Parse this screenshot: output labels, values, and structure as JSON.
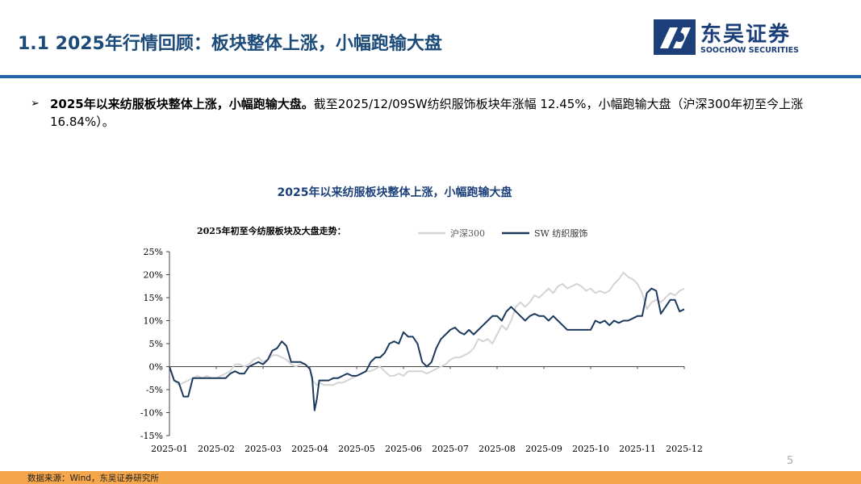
{
  "header": {
    "title": "1.1 2025年行情回顾：板块整体上涨，小幅跑输大盘",
    "logo_cn": "东吴证券",
    "logo_en": "SOOCHOW SECURITIES"
  },
  "body": {
    "bullet_bold": "2025年以来纺服板块整体上涨，小幅跑输大盘。",
    "bullet_rest": "截至2025/12/09SW纺织服饰板块年涨幅 12.45%，小幅跑输大盘（沪深300年初至今上涨16.84%）。",
    "chart_heading": "2025年以来纺服板块整体上涨，小幅跑输大盘"
  },
  "chart_data": {
    "type": "line",
    "title": "2025年初至今纺服板块及大盘走势：",
    "xlabel": "",
    "ylabel": "",
    "ylim": [
      -15,
      25
    ],
    "yticks": [
      "25%",
      "20%",
      "15%",
      "10%",
      "5%",
      "0%",
      "-5%",
      "-10%",
      "-15%"
    ],
    "x_tick_labels": [
      "2025-01",
      "2025-02",
      "2025-03",
      "2025-04",
      "2025-05",
      "2025-06",
      "2025-07",
      "2025-08",
      "2025-09",
      "2025-10",
      "2025-11",
      "2025-12"
    ],
    "x": [
      0,
      0.1,
      0.2,
      0.3,
      0.4,
      0.5,
      0.6,
      0.7,
      0.8,
      0.9,
      1.0,
      1.1,
      1.2,
      1.3,
      1.4,
      1.5,
      1.6,
      1.7,
      1.8,
      1.9,
      2.0,
      2.1,
      2.2,
      2.3,
      2.4,
      2.5,
      2.6,
      2.7,
      2.8,
      2.9,
      3.0,
      3.05,
      3.1,
      3.15,
      3.2,
      3.3,
      3.4,
      3.5,
      3.6,
      3.7,
      3.8,
      3.9,
      4.0,
      4.1,
      4.2,
      4.3,
      4.4,
      4.5,
      4.6,
      4.7,
      4.8,
      4.9,
      5.0,
      5.1,
      5.2,
      5.3,
      5.4,
      5.5,
      5.6,
      5.7,
      5.8,
      5.9,
      6.0,
      6.1,
      6.2,
      6.3,
      6.4,
      6.5,
      6.6,
      6.7,
      6.8,
      6.9,
      7.0,
      7.1,
      7.2,
      7.3,
      7.4,
      7.5,
      7.6,
      7.7,
      7.8,
      7.9,
      8.0,
      8.1,
      8.2,
      8.3,
      8.4,
      8.5,
      8.6,
      8.7,
      8.8,
      8.9,
      9.0,
      9.1,
      9.2,
      9.3,
      9.4,
      9.5,
      9.6,
      9.7,
      9.8,
      9.9,
      10.0,
      10.1,
      10.2,
      10.3,
      10.4,
      10.5,
      10.6,
      10.7,
      10.8,
      10.9,
      11.0
    ],
    "series": [
      {
        "name": "沪深300",
        "color": "#d4d4d4",
        "values": [
          0,
          -3,
          -4,
          -3.5,
          -3,
          -2.5,
          -2,
          -2.5,
          -2,
          -2.5,
          -2.5,
          -2,
          -1.5,
          -1,
          0.5,
          0.5,
          0,
          0.5,
          1.5,
          2,
          1,
          1.5,
          2.5,
          2.5,
          2,
          1.5,
          0.5,
          0,
          0.5,
          0.5,
          -0.5,
          -3,
          -3.5,
          -4,
          -3.5,
          -4,
          -4,
          -4,
          -3.5,
          -3.5,
          -3,
          -2.5,
          -2,
          -1.5,
          -1,
          -1,
          -0.5,
          0,
          -1,
          -2,
          -2,
          -1.5,
          -2,
          -1,
          -1,
          -1,
          -1,
          -1.5,
          -1,
          -0.5,
          0,
          0.5,
          1.5,
          2,
          2,
          2.5,
          3,
          4,
          6,
          5.5,
          6,
          5,
          7,
          9,
          8,
          10,
          13,
          14,
          13,
          14,
          15.5,
          15,
          16,
          17,
          16,
          17.5,
          18,
          17,
          17.5,
          18,
          17.5,
          16.5,
          17,
          16,
          16.5,
          16,
          16.5,
          18,
          19,
          20.5,
          19.5,
          19,
          18,
          16,
          12.5,
          14,
          14.5,
          14,
          15,
          16,
          15.5,
          16.5,
          17
        ]
      },
      {
        "name": "SW 纺织服饰",
        "color": "#1c3a5e",
        "values": [
          0,
          -3,
          -3.5,
          -6.5,
          -6.5,
          -2.5,
          -2.5,
          -2.5,
          -2.5,
          -2.5,
          -2.5,
          -2.5,
          -2.5,
          -1.5,
          -1,
          -1.5,
          -1.5,
          0,
          0.5,
          1,
          0.5,
          1.5,
          3.5,
          4,
          5.5,
          4.5,
          1,
          1,
          1,
          0.5,
          -0.5,
          -2.5,
          -9.5,
          -7,
          -3,
          -3,
          -3,
          -2.5,
          -2.5,
          -2,
          -1.5,
          -2,
          -2,
          -1.5,
          -1,
          1,
          2,
          2,
          3,
          5,
          5.5,
          5,
          7.5,
          6.5,
          6.5,
          5,
          1,
          0,
          1,
          4,
          6,
          7,
          8,
          8.5,
          7.5,
          7,
          8,
          7,
          8,
          9,
          10,
          11,
          11,
          10,
          12,
          13,
          12,
          11,
          10,
          11,
          11.5,
          11,
          11,
          10,
          11,
          10,
          9,
          8,
          8,
          8,
          8,
          8,
          8,
          10,
          9.5,
          10,
          9,
          10,
          9.5,
          10,
          10,
          10.5,
          11,
          11,
          16,
          17,
          16.5,
          11.5,
          13,
          14.5,
          14.5,
          12,
          12.5
        ]
      }
    ],
    "legend_position": "top",
    "grid": false
  },
  "footer": {
    "page_number": "5",
    "source": "数据来源：Wind，东吴证券研究所"
  },
  "colors": {
    "title": "#1c4b7a",
    "rule": "#1f65a8",
    "footer_bar": "#f4a64a",
    "series_csi300": "#d4d4d4",
    "series_sw": "#1c3a5e"
  }
}
